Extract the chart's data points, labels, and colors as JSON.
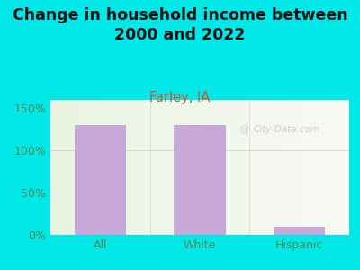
{
  "title": "Change in household income between\n2000 and 2022",
  "subtitle": "Farley, IA",
  "categories": [
    "All",
    "White",
    "Hispanic"
  ],
  "values": [
    130,
    130,
    10
  ],
  "bar_color": "#c8a8d8",
  "title_fontsize": 12.5,
  "subtitle_fontsize": 10.5,
  "subtitle_color": "#cc5533",
  "background_color": "#00e8e8",
  "plot_bg_color_left": "#e8f5e0",
  "plot_bg_color_right": "#f8f8f5",
  "ylim": [
    0,
    160
  ],
  "yticks": [
    0,
    50,
    100,
    150
  ],
  "ytick_labels": [
    "0%",
    "50%",
    "100%",
    "150%"
  ],
  "watermark": "City-Data.com",
  "tick_color": "#558855",
  "grid_color": "#ddeecc",
  "axis_line_color": "#aaaaaa",
  "separator_color": "#cccccc"
}
